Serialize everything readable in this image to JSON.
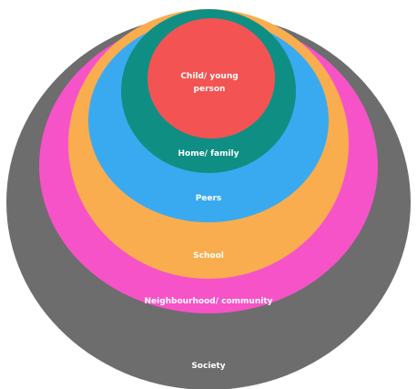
{
  "layers": [
    {
      "id": "society",
      "label": "Society",
      "color": "#6d6d6d"
    },
    {
      "id": "neighbourhood",
      "label": "Neighbourhood/ community",
      "color": "#f653c8"
    },
    {
      "id": "school",
      "label": "School",
      "color": "#f9ad4f"
    },
    {
      "id": "peers",
      "label": "Peers",
      "color": "#3aaaf0"
    },
    {
      "id": "home",
      "label": "Home/ family",
      "color": "#0f8f84"
    },
    {
      "id": "child",
      "label_line1": "Child/ young",
      "label_line2": "person",
      "color": "#f45353"
    }
  ]
}
